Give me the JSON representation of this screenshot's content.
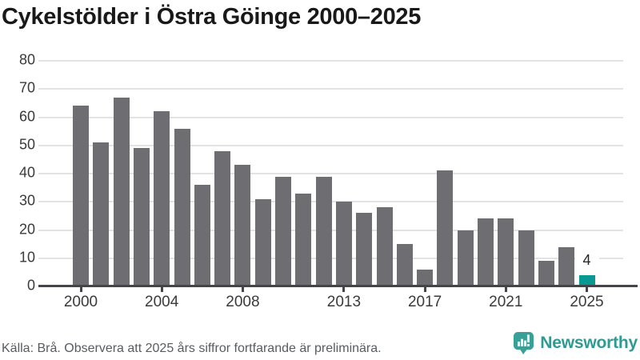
{
  "title": "Cykelstölder i Östra Göinge 2000–2025",
  "footer": {
    "source": "Källa: Brå. Observera att 2025 års siffror fortfarande är preliminära.",
    "brand": "Newsworthy"
  },
  "colors": {
    "bar": "#6e6e72",
    "bar_highlight": "#089a92",
    "grid": "#e3e3e3",
    "axis": "#454549",
    "tick_label": "#3a3a3a",
    "brand_teal": "#2f9a92"
  },
  "chart_data": {
    "type": "bar",
    "title": "Cykelstölder i Östra Göinge 2000–2025",
    "x": [
      2000,
      2001,
      2002,
      2003,
      2004,
      2005,
      2006,
      2007,
      2008,
      2009,
      2010,
      2011,
      2012,
      2013,
      2014,
      2015,
      2016,
      2017,
      2018,
      2019,
      2020,
      2021,
      2022,
      2023,
      2024,
      2025
    ],
    "values": [
      64,
      51,
      67,
      49,
      62,
      56,
      36,
      48,
      43,
      31,
      39,
      33,
      39,
      30,
      26,
      28,
      15,
      6,
      41,
      20,
      24,
      24,
      20,
      9,
      14,
      4
    ],
    "highlight_index": 25,
    "bar_label": {
      "index": 25,
      "text": "4"
    },
    "xticks": [
      2000,
      2004,
      2008,
      2013,
      2017,
      2021,
      2025
    ],
    "yticks": [
      0,
      10,
      20,
      30,
      40,
      50,
      60,
      70,
      80
    ],
    "ylim": [
      0,
      80
    ],
    "xlabel": "",
    "ylabel": "",
    "grid": "horizontal",
    "legend": "none"
  }
}
